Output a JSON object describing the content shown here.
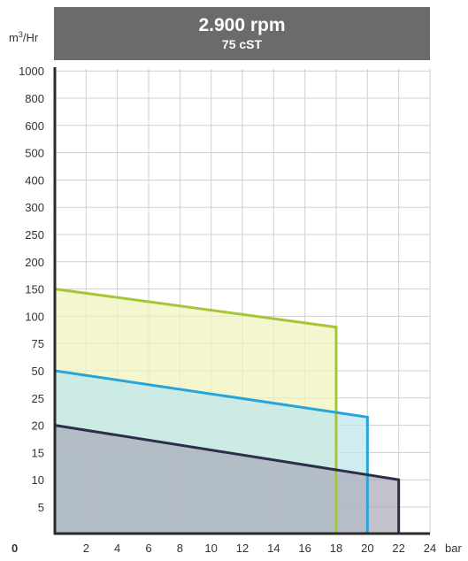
{
  "title": {
    "line1": "2.900 rpm",
    "line2": "75 cST"
  },
  "chart_data": {
    "type": "area",
    "title": "2.900 rpm",
    "subtitle": "75 cST",
    "ylabel": "m³/Hr",
    "xlabel": "bar",
    "origin_label": "0",
    "x_ticks": [
      2,
      4,
      6,
      8,
      10,
      12,
      14,
      16,
      18,
      20,
      22,
      24
    ],
    "xlim": [
      0,
      24
    ],
    "y_ticks": [
      "5",
      "10",
      "15",
      "20",
      "25",
      "50",
      "75",
      "100",
      "150",
      "200",
      "250",
      "300",
      "400",
      "500",
      "600",
      "800",
      "1000"
    ],
    "y_scale": "categorical (evenly spaced ticks)",
    "grid": true,
    "series": [
      {
        "points": [
          [
            0,
            150
          ],
          [
            18,
            90
          ]
        ],
        "color": "#a6c639",
        "fill": "#eef3bd"
      },
      {
        "points": [
          [
            0,
            50
          ],
          [
            20,
            21.5
          ]
        ],
        "color": "#27a4d8",
        "fill": "#bde6ec"
      },
      {
        "points": [
          [
            0,
            20
          ],
          [
            22,
            10
          ]
        ],
        "color": "#2c2f4a",
        "fill": "#a9aab8"
      }
    ]
  }
}
